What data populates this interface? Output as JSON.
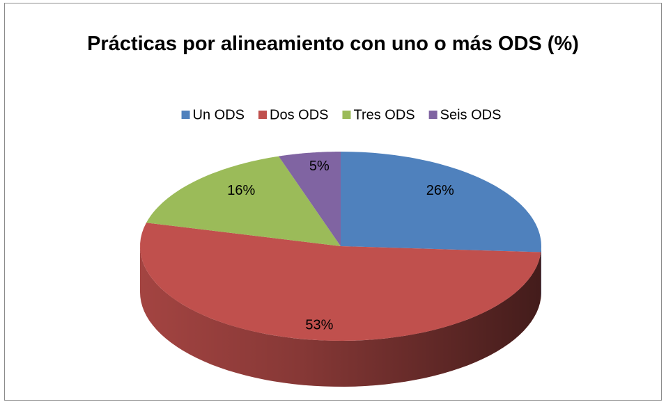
{
  "chart_data": {
    "type": "pie",
    "title": "Prácticas por alineamiento con uno o más  ODS (%)",
    "categories": [
      "Un ODS",
      "Dos ODS",
      "Tres ODS",
      "Seis ODS"
    ],
    "values": [
      26,
      53,
      16,
      5
    ],
    "value_labels": [
      "26%",
      "53%",
      "16%",
      "5%"
    ],
    "colors": [
      "#4f81bd",
      "#c0504d",
      "#9bbb59",
      "#8064a2"
    ],
    "legend": "top"
  }
}
